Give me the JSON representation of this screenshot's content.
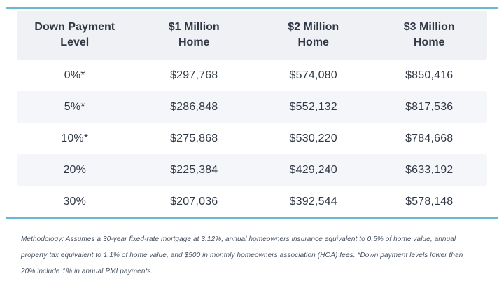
{
  "chart_data": {
    "type": "table",
    "title": "",
    "columns": [
      "Down Payment\nLevel",
      "$1 Million\nHome",
      "$2 Million\nHome",
      "$3 Million\nHome"
    ],
    "rows": [
      [
        "0%*",
        "$297,768",
        "$574,080",
        "$850,416"
      ],
      [
        "5%*",
        "$286,848",
        "$552,132",
        "$817,536"
      ],
      [
        "10%*",
        "$275,868",
        "$530,220",
        "$784,668"
      ],
      [
        "20%",
        "$225,384",
        "$429,240",
        "$633,192"
      ],
      [
        "30%",
        "$207,036",
        "$392,544",
        "$578,148"
      ]
    ],
    "footnote": "Methodology: Assumes a 30-year fixed-rate mortgage at 3.12%, annual homeowners insurance equivalent to 0.5% of home value, annual property tax equivalent to 1.1% of home value, and $500 in monthly homeowners association (HOA) fees. *Down payment levels lower than 20% include 1% in annual PMI payments.",
    "layout": {
      "zebra_striping": true,
      "striped_rows": [
        1,
        3
      ],
      "header_align": "center",
      "cell_align": "center"
    }
  },
  "colors": {
    "accent_rule": "#6ab7d1",
    "header_bg": "#eff1f5",
    "stripe_bg": "#f5f6fa",
    "text": "#2f3844",
    "footnote_text": "#47515f",
    "page_bg": "#ffffff"
  }
}
